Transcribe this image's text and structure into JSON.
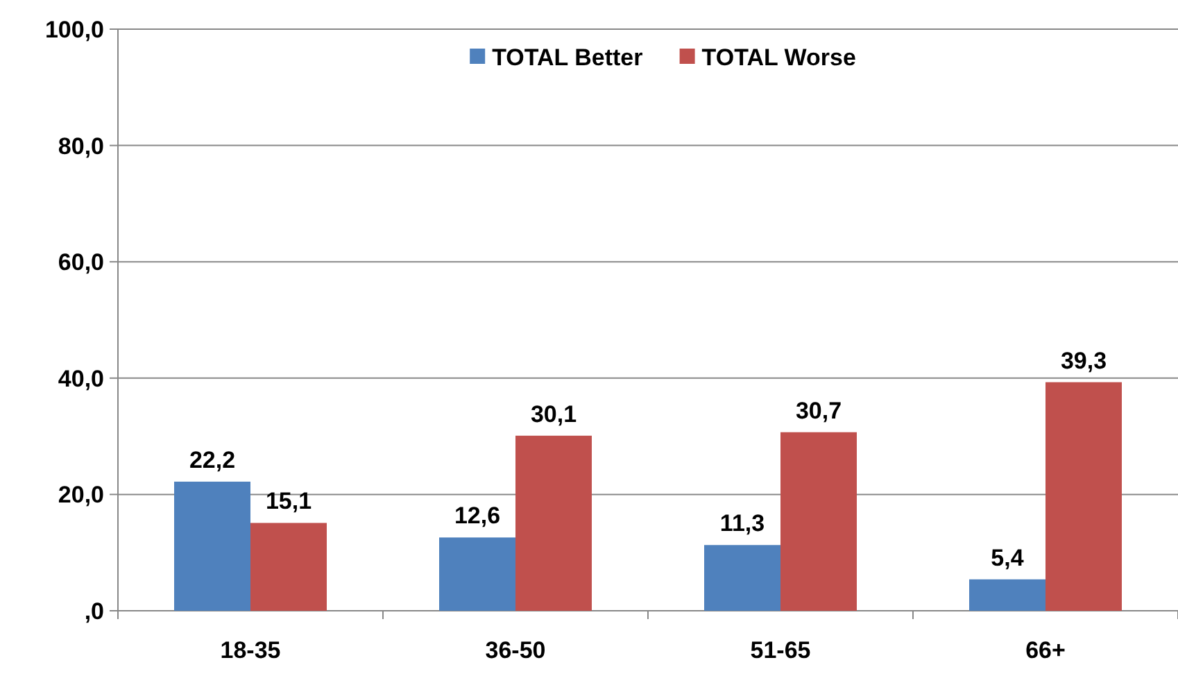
{
  "chart_data": {
    "type": "bar",
    "categories": [
      "18-35",
      "36-50",
      "51-65",
      "66+"
    ],
    "series": [
      {
        "name": "TOTAL Better",
        "color": "#4f81bd",
        "values": [
          22.2,
          12.6,
          11.3,
          5.4
        ],
        "value_labels": [
          "22,2",
          "12,6",
          "11,3",
          "5,4"
        ]
      },
      {
        "name": "TOTAL Worse",
        "color": "#c0504d",
        "values": [
          15.1,
          30.1,
          30.7,
          39.3
        ],
        "value_labels": [
          "15,1",
          "30,1",
          "30,7",
          "39,3"
        ]
      }
    ],
    "ylim": [
      0,
      100
    ],
    "yticks": [
      {
        "value": 0,
        "label": ",0"
      },
      {
        "value": 20,
        "label": "20,0"
      },
      {
        "value": 40,
        "label": "40,0"
      },
      {
        "value": 60,
        "label": "60,0"
      },
      {
        "value": 80,
        "label": "80,0"
      },
      {
        "value": 100,
        "label": "100,0"
      }
    ],
    "grid": "y",
    "legend": "top"
  }
}
